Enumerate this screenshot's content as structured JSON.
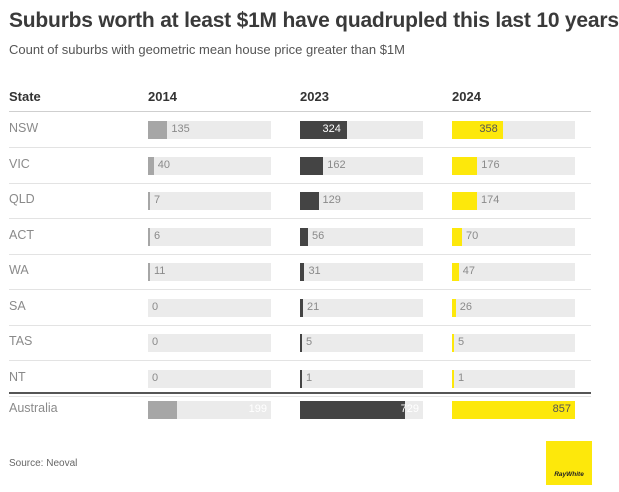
{
  "title": "Suburbs worth at least $1M have quadrupled this last 10 years",
  "subtitle": "Count of suburbs with geometric mean house price greater than $1M",
  "source": "Source: Neoval",
  "logo_text": "RayWhite",
  "colors": {
    "y2014": "#a6a6a6",
    "y2023": "#444444",
    "y2024": "#fde80b",
    "track": "#ebebeb"
  },
  "chart_data": {
    "type": "table",
    "title": "Suburbs worth at least $1M have quadrupled this last 10 years",
    "subtitle": "Count of suburbs with geometric mean house price greater than $1M",
    "row_header": "State",
    "years": [
      "2014",
      "2023",
      "2024"
    ],
    "max_value": 857,
    "rows": [
      {
        "state": "NSW",
        "values": [
          135,
          324,
          358
        ]
      },
      {
        "state": "VIC",
        "values": [
          40,
          162,
          176
        ]
      },
      {
        "state": "QLD",
        "values": [
          7,
          129,
          174
        ]
      },
      {
        "state": "ACT",
        "values": [
          6,
          56,
          70
        ]
      },
      {
        "state": "WA",
        "values": [
          11,
          31,
          47
        ]
      },
      {
        "state": "SA",
        "values": [
          0,
          21,
          26
        ]
      },
      {
        "state": "TAS",
        "values": [
          0,
          5,
          5
        ]
      },
      {
        "state": "NT",
        "values": [
          0,
          1,
          1
        ]
      }
    ],
    "total": {
      "state": "Australia",
      "values": [
        199,
        729,
        857
      ]
    }
  }
}
